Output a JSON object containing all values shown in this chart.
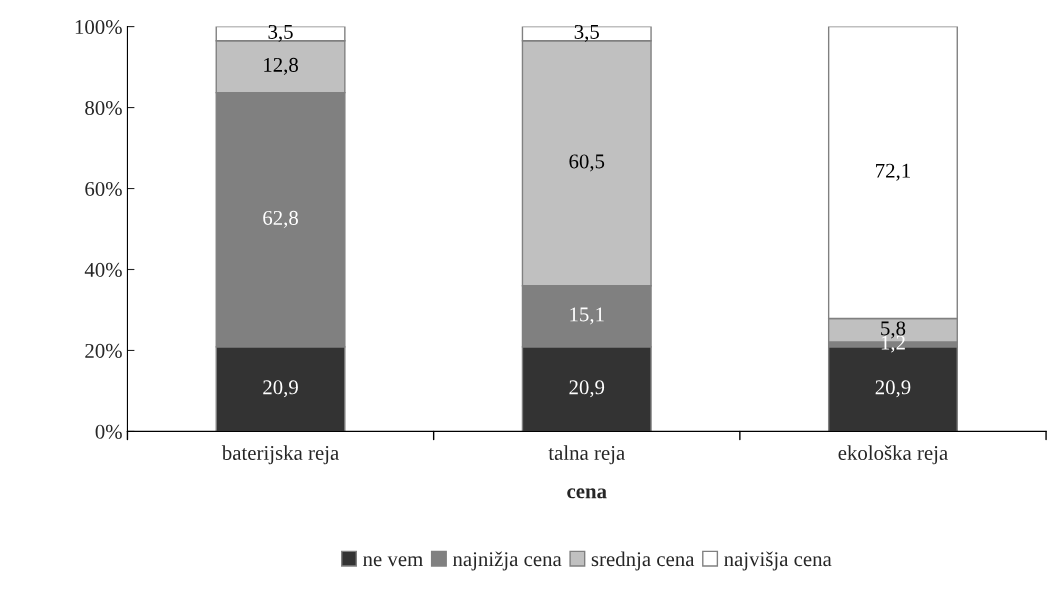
{
  "chart_data": {
    "type": "bar",
    "stacked": true,
    "xlabel": "cena",
    "categories": [
      "baterijska reja",
      "talna reja",
      "ekološka reja"
    ],
    "series": [
      {
        "name": "ne vem",
        "color": "#333333",
        "values": [
          20.9,
          20.9,
          20.9
        ],
        "value_labels": [
          "20,9",
          "20,9",
          "20,9"
        ]
      },
      {
        "name": "najnižja cena",
        "color": "#808080",
        "values": [
          62.8,
          15.1,
          1.2
        ],
        "value_labels": [
          "62,8",
          "15,1",
          "1,2"
        ]
      },
      {
        "name": "srednja cena",
        "color": "#c0c0c0",
        "values": [
          12.8,
          60.5,
          5.8
        ],
        "value_labels": [
          "12,8",
          "60,5",
          "5,8"
        ]
      },
      {
        "name": "najvišja cena",
        "color": "#ffffff",
        "values": [
          3.5,
          3.5,
          72.1
        ],
        "value_labels": [
          "3,5",
          "3,5",
          "72,1"
        ]
      }
    ],
    "ylim": [
      0,
      100
    ],
    "yticks": [
      {
        "value": 0,
        "label": "0%"
      },
      {
        "value": 20,
        "label": "20%"
      },
      {
        "value": 40,
        "label": "40%"
      },
      {
        "value": 60,
        "label": "60%"
      },
      {
        "value": 80,
        "label": "80%"
      },
      {
        "value": 100,
        "label": "100%"
      }
    ],
    "grid": false,
    "legend": "bottom"
  }
}
